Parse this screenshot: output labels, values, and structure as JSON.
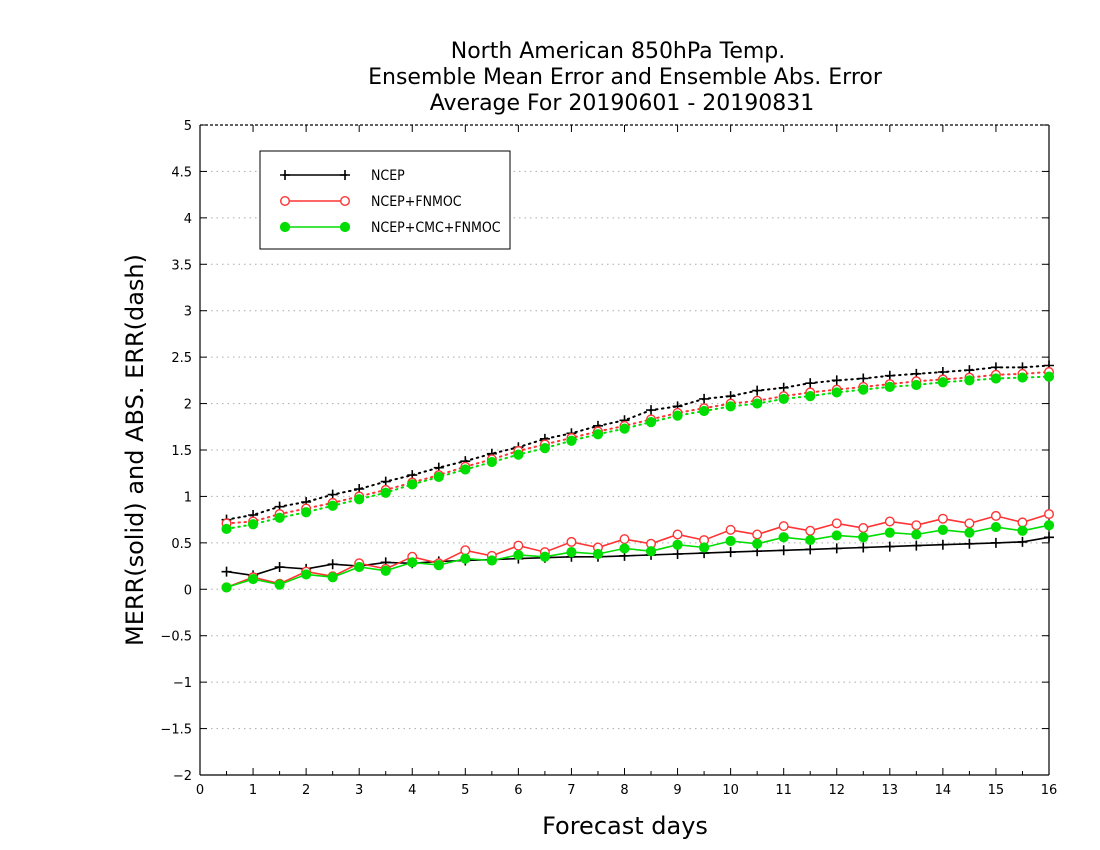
{
  "chart_data": {
    "type": "line",
    "title": [
      "North American 850hPa Temp.",
      "Ensemble Mean Error and Ensemble Abs. Error",
      "Average For 20190601 - 20190831"
    ],
    "xlabel": "Forecast days",
    "ylabel": "MERR(solid) and ABS. ERR(dash)",
    "xlim": [
      0,
      16
    ],
    "ylim": [
      -2,
      5
    ],
    "xticks": [
      0,
      1,
      2,
      3,
      4,
      5,
      6,
      7,
      8,
      9,
      10,
      11,
      12,
      13,
      14,
      15,
      16
    ],
    "xtick_labels": [
      "0",
      "1",
      "2",
      "3",
      "4",
      "5",
      "6",
      "7",
      "8",
      "9",
      "10",
      "11",
      "12",
      "13",
      "14",
      "15",
      "16"
    ],
    "yticks": [
      -2,
      -1.5,
      -1,
      -0.5,
      0,
      0.5,
      1,
      1.5,
      2,
      2.5,
      3,
      3.5,
      4,
      4.5,
      5
    ],
    "ytick_labels": [
      "−2",
      "−1.5",
      "−1",
      "−0.5",
      "0",
      "0.5",
      "1",
      "1.5",
      "2",
      "2.5",
      "3",
      "3.5",
      "4",
      "4.5",
      "5"
    ],
    "grid": "horizontal dotted",
    "legend_position": "top-left",
    "x": [
      0.5,
      1,
      1.5,
      2,
      2.5,
      3,
      3.5,
      4,
      4.5,
      5,
      5.5,
      6,
      6.5,
      7,
      7.5,
      8,
      8.5,
      9,
      9.5,
      10,
      10.5,
      11,
      11.5,
      12,
      12.5,
      13,
      13.5,
      14,
      14.5,
      15,
      15.5,
      16
    ],
    "series": [
      {
        "name": "NCEP",
        "color": "#000000",
        "marker": "plus",
        "merr": [
          0.19,
          0.15,
          0.24,
          0.22,
          0.27,
          0.25,
          0.29,
          0.28,
          0.3,
          0.31,
          0.32,
          0.33,
          0.34,
          0.35,
          0.35,
          0.36,
          0.37,
          0.38,
          0.39,
          0.4,
          0.41,
          0.42,
          0.43,
          0.44,
          0.45,
          0.46,
          0.47,
          0.48,
          0.49,
          0.5,
          0.51,
          0.56
        ],
        "abs_err": [
          0.75,
          0.8,
          0.89,
          0.94,
          1.02,
          1.08,
          1.16,
          1.23,
          1.31,
          1.38,
          1.46,
          1.53,
          1.62,
          1.68,
          1.76,
          1.82,
          1.93,
          1.97,
          2.05,
          2.08,
          2.14,
          2.17,
          2.22,
          2.25,
          2.27,
          2.3,
          2.32,
          2.34,
          2.36,
          2.39,
          2.39,
          2.41
        ]
      },
      {
        "name": "NCEP+FNMOC",
        "color": "#ff3333",
        "marker": "open-circle",
        "merr": [
          0.02,
          0.13,
          0.06,
          0.19,
          0.14,
          0.28,
          0.22,
          0.35,
          0.28,
          0.42,
          0.36,
          0.47,
          0.4,
          0.51,
          0.45,
          0.54,
          0.49,
          0.59,
          0.53,
          0.64,
          0.59,
          0.68,
          0.63,
          0.71,
          0.66,
          0.73,
          0.69,
          0.76,
          0.71,
          0.79,
          0.72,
          0.81
        ],
        "abs_err": [
          0.71,
          0.73,
          0.81,
          0.87,
          0.93,
          1.0,
          1.07,
          1.15,
          1.23,
          1.32,
          1.4,
          1.49,
          1.56,
          1.63,
          1.7,
          1.76,
          1.83,
          1.9,
          1.95,
          2.0,
          2.03,
          2.08,
          2.12,
          2.15,
          2.18,
          2.21,
          2.24,
          2.26,
          2.28,
          2.31,
          2.32,
          2.34
        ]
      },
      {
        "name": "NCEP+CMC+FNMOC",
        "color": "#00dd00",
        "marker": "filled-circle",
        "merr": [
          0.02,
          0.11,
          0.05,
          0.16,
          0.13,
          0.24,
          0.2,
          0.29,
          0.26,
          0.33,
          0.31,
          0.37,
          0.35,
          0.4,
          0.38,
          0.44,
          0.41,
          0.48,
          0.45,
          0.52,
          0.49,
          0.56,
          0.53,
          0.58,
          0.56,
          0.61,
          0.59,
          0.64,
          0.61,
          0.67,
          0.63,
          0.69
        ],
        "abs_err": [
          0.65,
          0.7,
          0.77,
          0.83,
          0.9,
          0.97,
          1.04,
          1.13,
          1.21,
          1.29,
          1.37,
          1.45,
          1.52,
          1.6,
          1.67,
          1.73,
          1.8,
          1.87,
          1.92,
          1.97,
          2.0,
          2.05,
          2.08,
          2.12,
          2.15,
          2.18,
          2.2,
          2.23,
          2.25,
          2.27,
          2.28,
          2.29
        ]
      }
    ]
  }
}
